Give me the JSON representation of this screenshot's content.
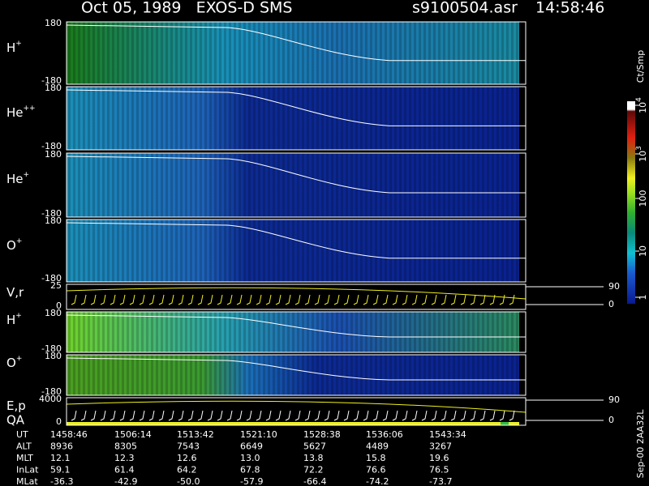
{
  "header": {
    "title": "Oct 05, 1989   EXOS-D SMS",
    "file": "s9100504.asr",
    "time": "14:58:46"
  },
  "panels": [
    {
      "label": {
        "base": "H",
        "sup": "+"
      },
      "ticks": [
        "180",
        "-180"
      ]
    },
    {
      "label": {
        "base": "He",
        "sup": "++"
      },
      "ticks": [
        "180",
        "-180"
      ]
    },
    {
      "label": {
        "base": "He",
        "sup": "+"
      },
      "ticks": [
        "180",
        "-180"
      ]
    },
    {
      "label": {
        "base": "O",
        "sup": "+"
      },
      "ticks": [
        "180",
        "-180"
      ]
    },
    {
      "label": {
        "base": "V,r",
        "sup": ""
      },
      "ticks": [
        "25",
        "0"
      ],
      "right_ticks": [
        "90",
        "0"
      ]
    },
    {
      "label": {
        "base": "H",
        "sup": "+"
      },
      "ticks": [
        "180",
        "-180"
      ]
    },
    {
      "label": {
        "base": "O",
        "sup": "+"
      },
      "ticks": [
        "180",
        "-180"
      ]
    },
    {
      "label": {
        "base": "E,p",
        "sup": ""
      },
      "label2": "QA",
      "ticks": [
        "4000",
        "0"
      ],
      "right_ticks": [
        "90",
        "0"
      ]
    }
  ],
  "colorbar": {
    "unit": "Ct/Smp",
    "ticks": [
      {
        "base": "10",
        "sup": "4"
      },
      {
        "base": "10",
        "sup": "3"
      },
      {
        "base": "100",
        "sup": ""
      },
      {
        "base": "10",
        "sup": ""
      },
      {
        "base": "1",
        "sup": ""
      }
    ]
  },
  "footer": {
    "rows": [
      {
        "name": "UT",
        "values": [
          "1458:46",
          "1506:14",
          "1513:42",
          "1521:10",
          "1528:38",
          "1536:06",
          "1543:34"
        ]
      },
      {
        "name": "ALT",
        "values": [
          "8936",
          "8305",
          "7543",
          "6649",
          "5627",
          "4489",
          "3267"
        ]
      },
      {
        "name": "MLT",
        "values": [
          "12.1",
          "12.3",
          "12.6",
          "13.0",
          "13.8",
          "15.8",
          "19.6"
        ]
      },
      {
        "name": "InLat",
        "values": [
          "59.1",
          "61.4",
          "64.2",
          "67.8",
          "72.2",
          "76.6",
          "76.5"
        ]
      },
      {
        "name": "MLat",
        "values": [
          "-36.3",
          "-42.9",
          "-50.0",
          "-57.9",
          "-66.4",
          "-74.2",
          "-73.7"
        ]
      }
    ]
  },
  "side_note": "Sep-00 2AA32L"
}
